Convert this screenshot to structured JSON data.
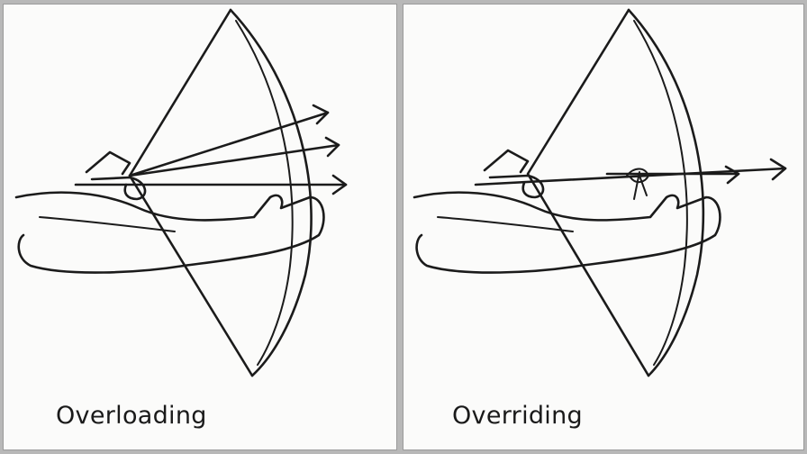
{
  "panels": [
    {
      "id": "left",
      "caption": "Overloading"
    },
    {
      "id": "right",
      "caption": "Overriding"
    }
  ],
  "colors": {
    "ink": "#1b1b1b",
    "paper": "#fbfbfa",
    "frame": "#b8b8b8"
  }
}
